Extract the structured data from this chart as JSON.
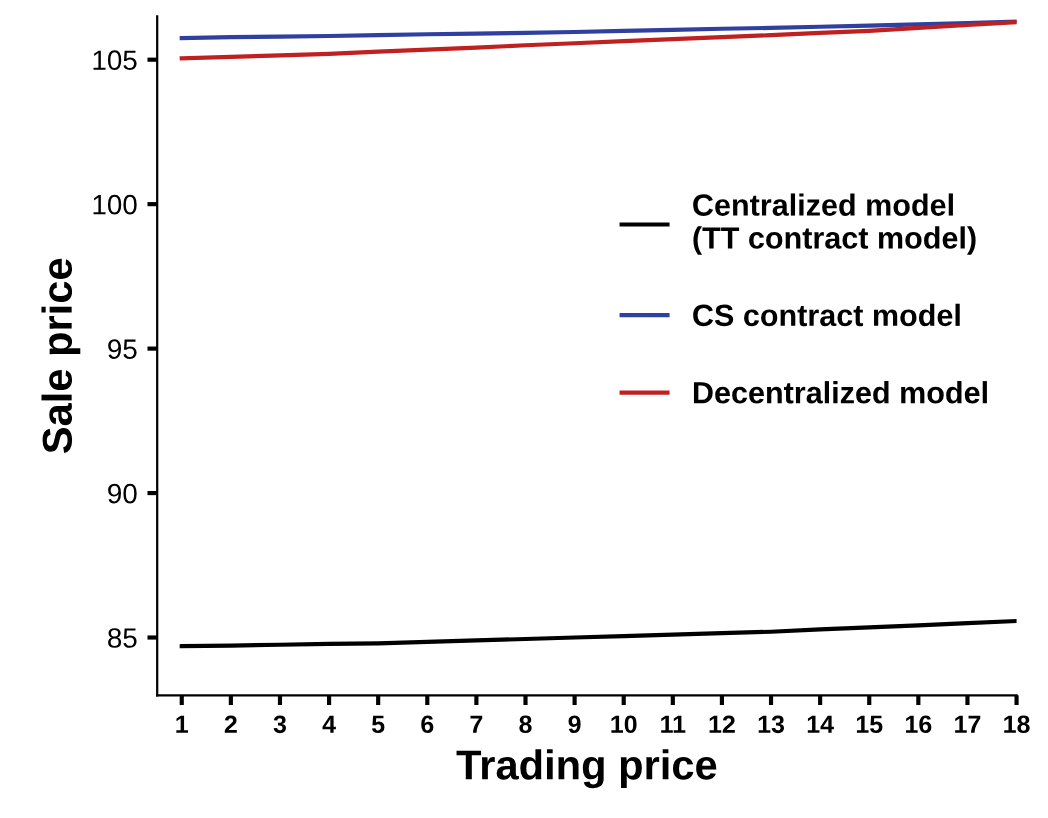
{
  "chart_data": {
    "type": "line",
    "xlabel": "Trading price",
    "ylabel": "Sale price",
    "x": [
      1,
      2,
      3,
      4,
      5,
      6,
      7,
      8,
      9,
      10,
      11,
      12,
      13,
      14,
      15,
      16,
      17,
      18
    ],
    "series": [
      {
        "name": "Centralized model\n(TT contract model)",
        "color": "#000000",
        "values": [
          84.7,
          84.72,
          84.75,
          84.78,
          84.8,
          84.85,
          84.9,
          84.95,
          85.0,
          85.05,
          85.1,
          85.15,
          85.2,
          85.28,
          85.35,
          85.42,
          85.5,
          85.57
        ]
      },
      {
        "name": "CS contract model",
        "color": "#3040a0",
        "values": [
          105.75,
          105.78,
          105.8,
          105.82,
          105.85,
          105.88,
          105.9,
          105.93,
          105.96,
          106.0,
          106.03,
          106.07,
          106.1,
          106.14,
          106.18,
          106.22,
          106.27,
          106.32
        ]
      },
      {
        "name": "Decentralized model",
        "color": "#c02020",
        "values": [
          105.05,
          105.1,
          105.15,
          105.2,
          105.28,
          105.35,
          105.42,
          105.5,
          105.57,
          105.64,
          105.71,
          105.78,
          105.85,
          105.93,
          106.0,
          106.1,
          106.2,
          106.3
        ]
      }
    ],
    "xlim": [
      0.5,
      18
    ],
    "xticks": [
      1,
      2,
      3,
      4,
      5,
      6,
      7,
      8,
      9,
      10,
      11,
      12,
      13,
      14,
      15,
      16,
      17,
      18
    ],
    "ylim": [
      83,
      106.5
    ],
    "yticks": [
      85,
      90,
      95,
      100,
      105
    ],
    "grid": false,
    "legend": "right",
    "marker": "none",
    "line_style": "solid"
  }
}
